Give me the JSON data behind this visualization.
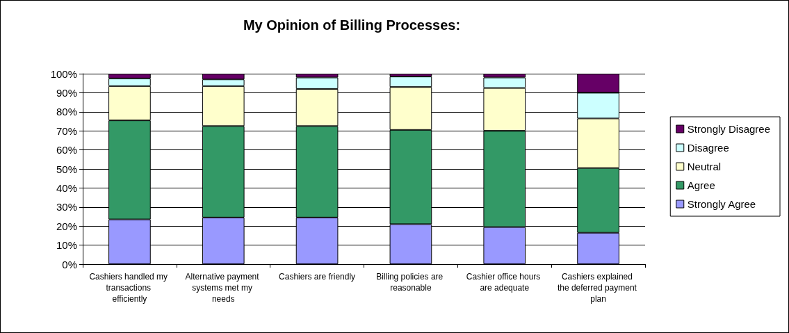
{
  "chart_data": {
    "type": "bar",
    "title": "My Opinion of Billing Processes:",
    "stacked": true,
    "categories": [
      "Cashiers handled my transactions efficiently",
      "Alternative payment systems met my needs",
      "Cashiers are friendly",
      "Billing policies are reasonable",
      "Cashier office hours are adequate",
      "Cashiers explained the deferred payment plan"
    ],
    "series": [
      {
        "name": "Strongly Agree",
        "color": "#9999ff",
        "values": [
          23.5,
          24.5,
          24.5,
          21,
          19.5,
          16.5
        ]
      },
      {
        "name": "Agree",
        "color": "#339966",
        "values": [
          52,
          48,
          48,
          49.5,
          50.5,
          34
        ]
      },
      {
        "name": "Neutral",
        "color": "#ffffcc",
        "values": [
          18,
          21,
          19.5,
          22.5,
          22.5,
          26
        ]
      },
      {
        "name": "Disagree",
        "color": "#ccffff",
        "values": [
          4,
          3.5,
          6,
          5.5,
          5.5,
          13.5
        ]
      },
      {
        "name": "Strongly Disagree",
        "color": "#660066",
        "values": [
          2.5,
          3,
          2,
          1.5,
          2,
          10
        ]
      }
    ],
    "ylim": [
      0,
      100
    ],
    "yticks": [
      {
        "value": 0,
        "label": "0%"
      },
      {
        "value": 10,
        "label": "10%"
      },
      {
        "value": 20,
        "label": "20%"
      },
      {
        "value": 30,
        "label": "30%"
      },
      {
        "value": 40,
        "label": "40%"
      },
      {
        "value": 50,
        "label": "50%"
      },
      {
        "value": 60,
        "label": "60%"
      },
      {
        "value": 70,
        "label": "70%"
      },
      {
        "value": 80,
        "label": "80%"
      },
      {
        "value": 90,
        "label": "90%"
      },
      {
        "value": 100,
        "label": "100%"
      }
    ],
    "grid": "y",
    "legend": "right"
  }
}
